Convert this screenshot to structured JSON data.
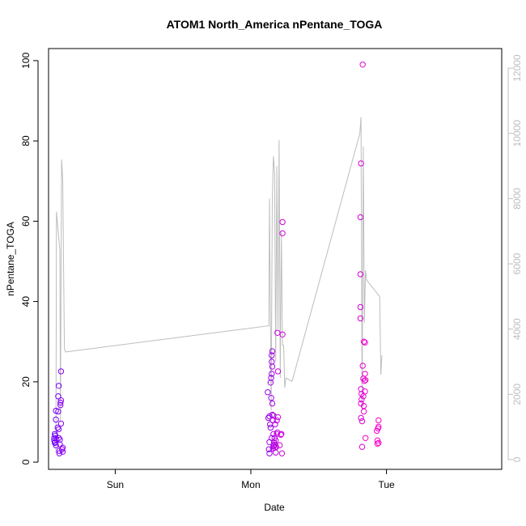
{
  "chart_data": {
    "type": "scatter",
    "title": "ATOM1 North_America nPentane_TOGA",
    "xlabel": "Date",
    "ylabel": "nPentane_TOGA",
    "x_ticks": [
      "Sun",
      "Mon",
      "Tue"
    ],
    "x_tick_hours": [
      24,
      48,
      72
    ],
    "xlim_hours": [
      12.2,
      92.4
    ],
    "ylim": [
      0,
      100
    ],
    "y_ticks": [
      0,
      20,
      40,
      60,
      80,
      100
    ],
    "y2_ticks": [
      0,
      2000,
      4000,
      6000,
      8000,
      10000,
      12000
    ],
    "y2lim": [
      -300,
      12600
    ],
    "colors": {
      "points_start": "#6a00ff",
      "points_end": "#ff00c8",
      "secondary_line": "#bdbdbd",
      "right_axis": "#bdbdbd"
    },
    "secondary_line": {
      "x_hours": [
        13.5,
        13.6,
        14.2,
        14.3,
        14.5,
        14.7,
        15.0,
        15.2,
        51.2,
        51.3,
        51.6,
        51.8,
        52.0,
        52.2,
        52.4,
        52.6,
        52.8,
        53.0,
        53.2,
        53.4,
        53.6,
        53.8,
        54.0,
        54.2,
        55.3,
        67.3,
        67.5,
        67.7,
        67.9,
        68.1,
        68.3,
        68.5,
        70.8,
        71.0,
        71.2
      ],
      "y2_values": [
        200,
        7600,
        6400,
        1200,
        9200,
        8600,
        3400,
        3300,
        4100,
        8000,
        1500,
        8000,
        9300,
        8800,
        3000,
        9000,
        4000,
        9800,
        2500,
        7000,
        3500,
        3500,
        2200,
        2500,
        2400,
        10000,
        10500,
        1500,
        9600,
        4200,
        5800,
        5500,
        5000,
        2600,
        3200
      ]
    },
    "points": [
      {
        "x": 13.2,
        "y": 6.0
      },
      {
        "x": 13.2,
        "y": 5.4
      },
      {
        "x": 13.3,
        "y": 7.0
      },
      {
        "x": 13.3,
        "y": 4.8
      },
      {
        "x": 13.4,
        "y": 6.6
      },
      {
        "x": 13.4,
        "y": 5.0
      },
      {
        "x": 13.5,
        "y": 10.6
      },
      {
        "x": 13.5,
        "y": 12.8
      },
      {
        "x": 13.5,
        "y": 4.2
      },
      {
        "x": 13.6,
        "y": 5.6
      },
      {
        "x": 13.8,
        "y": 8.6
      },
      {
        "x": 13.9,
        "y": 16.4
      },
      {
        "x": 13.9,
        "y": 12.6
      },
      {
        "x": 14.0,
        "y": 19.0
      },
      {
        "x": 14.0,
        "y": 6.0
      },
      {
        "x": 14.0,
        "y": 8.2
      },
      {
        "x": 14.1,
        "y": 2.8
      },
      {
        "x": 14.1,
        "y": 2.2
      },
      {
        "x": 14.2,
        "y": 5.6
      },
      {
        "x": 14.2,
        "y": 4.4
      },
      {
        "x": 14.3,
        "y": 14.2
      },
      {
        "x": 14.3,
        "y": 14.8
      },
      {
        "x": 14.4,
        "y": 22.6
      },
      {
        "x": 14.4,
        "y": 9.6
      },
      {
        "x": 14.4,
        "y": 15.4
      },
      {
        "x": 14.6,
        "y": 3.2
      },
      {
        "x": 14.7,
        "y": 2.6
      },
      {
        "x": 14.7,
        "y": 3.6
      },
      {
        "x": 51.0,
        "y": 17.4
      },
      {
        "x": 51.1,
        "y": 11.0
      },
      {
        "x": 51.2,
        "y": 3.2
      },
      {
        "x": 51.3,
        "y": 5.0
      },
      {
        "x": 51.3,
        "y": 2.2
      },
      {
        "x": 51.3,
        "y": 11.4
      },
      {
        "x": 51.4,
        "y": 9.4
      },
      {
        "x": 51.5,
        "y": 8.6
      },
      {
        "x": 51.5,
        "y": 19.8
      },
      {
        "x": 51.6,
        "y": 21.0
      },
      {
        "x": 51.6,
        "y": 16.0
      },
      {
        "x": 51.7,
        "y": 22.0
      },
      {
        "x": 51.7,
        "y": 26.6
      },
      {
        "x": 51.7,
        "y": 25.0
      },
      {
        "x": 51.7,
        "y": 6.0
      },
      {
        "x": 51.8,
        "y": 27.6
      },
      {
        "x": 51.8,
        "y": 23.8
      },
      {
        "x": 51.8,
        "y": 14.6
      },
      {
        "x": 51.8,
        "y": 11.8
      },
      {
        "x": 51.9,
        "y": 3.4
      },
      {
        "x": 51.9,
        "y": 10.4
      },
      {
        "x": 52.0,
        "y": 11.6
      },
      {
        "x": 52.0,
        "y": 7.0
      },
      {
        "x": 52.0,
        "y": 4.0
      },
      {
        "x": 52.1,
        "y": 5.0
      },
      {
        "x": 52.1,
        "y": 4.2
      },
      {
        "x": 52.2,
        "y": 6.0
      },
      {
        "x": 52.2,
        "y": 3.6
      },
      {
        "x": 52.3,
        "y": 9.4
      },
      {
        "x": 52.3,
        "y": 4.4
      },
      {
        "x": 52.4,
        "y": 2.4
      },
      {
        "x": 52.4,
        "y": 5.4
      },
      {
        "x": 52.5,
        "y": 3.8
      },
      {
        "x": 52.6,
        "y": 7.0
      },
      {
        "x": 52.6,
        "y": 10.4
      },
      {
        "x": 52.7,
        "y": 32.2
      },
      {
        "x": 52.7,
        "y": 7.4
      },
      {
        "x": 52.8,
        "y": 22.6
      },
      {
        "x": 52.8,
        "y": 11.2
      },
      {
        "x": 53.1,
        "y": 4.2
      },
      {
        "x": 53.3,
        "y": 6.8
      },
      {
        "x": 53.4,
        "y": 7.0
      },
      {
        "x": 53.5,
        "y": 2.2
      },
      {
        "x": 53.6,
        "y": 31.8
      },
      {
        "x": 53.6,
        "y": 59.8
      },
      {
        "x": 53.6,
        "y": 57.0
      },
      {
        "x": 67.4,
        "y": 46.8
      },
      {
        "x": 67.4,
        "y": 61.0
      },
      {
        "x": 67.5,
        "y": 74.4
      },
      {
        "x": 67.4,
        "y": 38.6
      },
      {
        "x": 67.4,
        "y": 35.8
      },
      {
        "x": 67.5,
        "y": 18.2
      },
      {
        "x": 67.5,
        "y": 14.6
      },
      {
        "x": 67.5,
        "y": 11.0
      },
      {
        "x": 67.6,
        "y": 15.6
      },
      {
        "x": 67.6,
        "y": 17.0
      },
      {
        "x": 67.7,
        "y": 10.2
      },
      {
        "x": 67.7,
        "y": 3.8
      },
      {
        "x": 67.8,
        "y": 99.0
      },
      {
        "x": 67.8,
        "y": 24.0
      },
      {
        "x": 67.9,
        "y": 20.8
      },
      {
        "x": 67.9,
        "y": 16.4
      },
      {
        "x": 68.0,
        "y": 30.0
      },
      {
        "x": 68.0,
        "y": 14.0
      },
      {
        "x": 68.0,
        "y": 12.6
      },
      {
        "x": 68.1,
        "y": 20.2
      },
      {
        "x": 68.2,
        "y": 29.8
      },
      {
        "x": 68.2,
        "y": 22.0
      },
      {
        "x": 68.2,
        "y": 17.6
      },
      {
        "x": 68.3,
        "y": 20.4
      },
      {
        "x": 68.3,
        "y": 6.0
      },
      {
        "x": 70.3,
        "y": 7.8
      },
      {
        "x": 70.4,
        "y": 5.4
      },
      {
        "x": 70.4,
        "y": 4.6
      },
      {
        "x": 70.5,
        "y": 8.4
      },
      {
        "x": 70.6,
        "y": 4.8
      },
      {
        "x": 70.6,
        "y": 8.8
      },
      {
        "x": 70.6,
        "y": 10.4
      }
    ]
  }
}
